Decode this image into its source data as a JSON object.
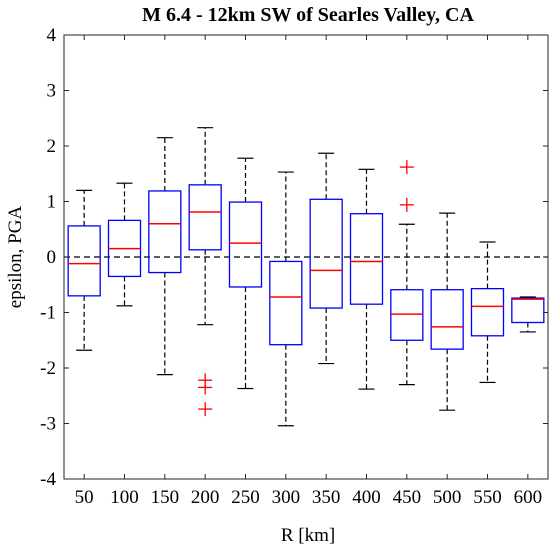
{
  "chart_data": {
    "type": "boxplot",
    "title": "M 6.4 - 12km SW of Searles Valley, CA",
    "xlabel": "R [km]",
    "ylabel": "epsilon, PGA",
    "ylim": [
      -4,
      4
    ],
    "yticks": [
      "-4",
      "-3",
      "-2",
      "-1",
      "0",
      "1",
      "2",
      "3",
      "4"
    ],
    "categories": [
      "50",
      "100",
      "150",
      "200",
      "250",
      "300",
      "350",
      "400",
      "450",
      "500",
      "550",
      "600"
    ],
    "reference_line": 0,
    "grid": false,
    "colors": {
      "box": "#0000ff",
      "median": "#ff0000",
      "whisker": "#000000",
      "outlier": "#ff0000",
      "reference": "#000000"
    },
    "boxes": [
      {
        "category": "50",
        "whisker_low": -1.68,
        "q1": -0.7,
        "median": -0.12,
        "q3": 0.56,
        "whisker_high": 1.2,
        "outliers": []
      },
      {
        "category": "100",
        "whisker_low": -0.88,
        "q1": -0.35,
        "median": 0.15,
        "q3": 0.66,
        "whisker_high": 1.33,
        "outliers": []
      },
      {
        "category": "150",
        "whisker_low": -2.12,
        "q1": -0.28,
        "median": 0.6,
        "q3": 1.19,
        "whisker_high": 2.15,
        "outliers": []
      },
      {
        "category": "200",
        "whisker_low": -1.22,
        "q1": 0.13,
        "median": 0.81,
        "q3": 1.3,
        "whisker_high": 2.33,
        "outliers": [
          -2.22,
          -2.35,
          -2.74
        ]
      },
      {
        "category": "250",
        "whisker_low": -2.37,
        "q1": -0.54,
        "median": 0.25,
        "q3": 0.99,
        "whisker_high": 1.78,
        "outliers": []
      },
      {
        "category": "300",
        "whisker_low": -3.04,
        "q1": -1.58,
        "median": -0.72,
        "q3": -0.08,
        "whisker_high": 1.53,
        "outliers": []
      },
      {
        "category": "350",
        "whisker_low": -1.92,
        "q1": -0.92,
        "median": -0.24,
        "q3": 1.04,
        "whisker_high": 1.87,
        "outliers": []
      },
      {
        "category": "400",
        "whisker_low": -2.38,
        "q1": -0.85,
        "median": -0.08,
        "q3": 0.78,
        "whisker_high": 1.58,
        "outliers": []
      },
      {
        "category": "450",
        "whisker_low": -2.3,
        "q1": -1.5,
        "median": -1.03,
        "q3": -0.59,
        "whisker_high": 0.59,
        "outliers": [
          0.94,
          1.62
        ]
      },
      {
        "category": "500",
        "whisker_low": -2.76,
        "q1": -1.66,
        "median": -1.26,
        "q3": -0.59,
        "whisker_high": 0.79,
        "outliers": []
      },
      {
        "category": "550",
        "whisker_low": -2.26,
        "q1": -1.42,
        "median": -0.89,
        "q3": -0.57,
        "whisker_high": 0.27,
        "outliers": []
      },
      {
        "category": "600",
        "whisker_low": -1.35,
        "q1": -1.18,
        "median": -0.76,
        "q3": -0.74,
        "whisker_high": -0.72,
        "outliers": []
      }
    ]
  }
}
